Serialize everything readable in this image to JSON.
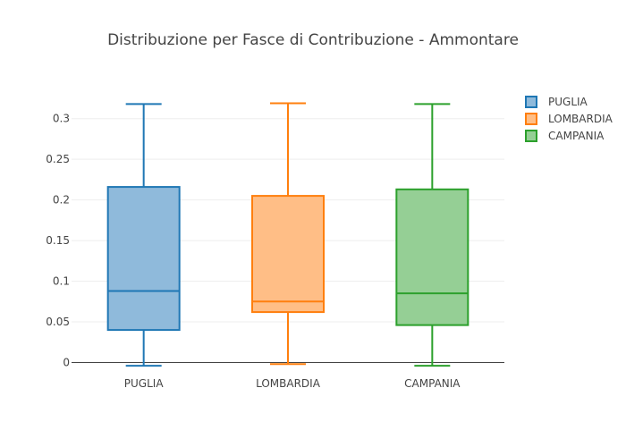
{
  "chart_data": {
    "type": "box",
    "title": "Distribuzione per Fasce di Contribuzione - Ammontare",
    "xlabel": "",
    "ylabel": "",
    "ylim": [
      -0.005,
      0.325
    ],
    "y_ticks": [
      0,
      0.05,
      0.1,
      0.15,
      0.2,
      0.25,
      0.3
    ],
    "y_tick_labels": [
      "0",
      "0.05",
      "0.1",
      "0.15",
      "0.2",
      "0.25",
      "0.3"
    ],
    "grid": true,
    "legend_position": "top-right",
    "categories": [
      "PUGLIA",
      "LOMBARDIA",
      "CAMPANIA"
    ],
    "series": [
      {
        "name": "PUGLIA",
        "color": "#1f77b4",
        "fill": "#8fbadb",
        "min": -0.004,
        "q1": 0.04,
        "median": 0.088,
        "q3": 0.216,
        "max": 0.318
      },
      {
        "name": "LOMBARDIA",
        "color": "#ff7f0e",
        "fill": "#ffbe86",
        "min": -0.002,
        "q1": 0.062,
        "median": 0.075,
        "q3": 0.205,
        "max": 0.319
      },
      {
        "name": "CAMPANIA",
        "color": "#2ca02c",
        "fill": "#95cf95",
        "min": -0.004,
        "q1": 0.046,
        "median": 0.085,
        "q3": 0.213,
        "max": 0.318
      }
    ]
  }
}
